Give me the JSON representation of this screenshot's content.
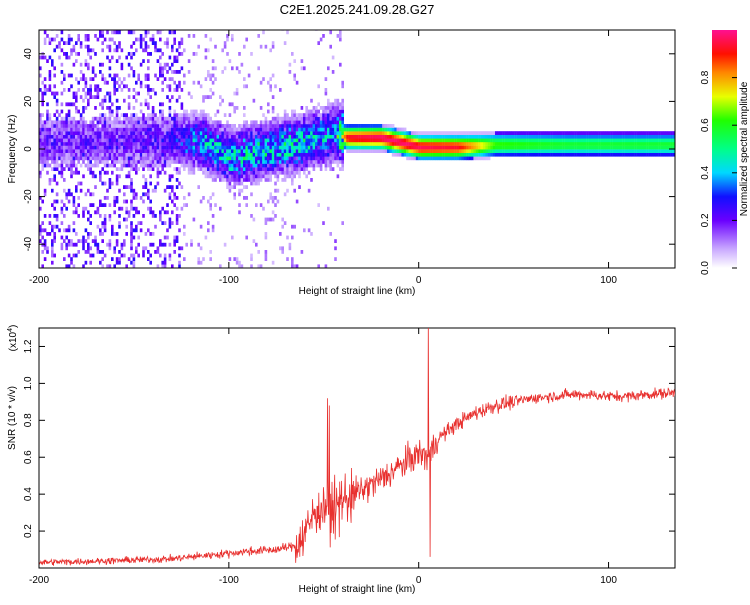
{
  "chart_data": [
    {
      "type": "heatmap",
      "title": "C2E1.2025.241.09.28.G27",
      "xlabel": "Height of straight line (km)",
      "ylabel": "Frequency (Hz)",
      "xlim": [
        -200,
        135
      ],
      "ylim": [
        -50,
        50
      ],
      "xticks": [
        "-200",
        "-100",
        "0",
        "100"
      ],
      "yticks": [
        "40",
        "20",
        "0",
        "-20",
        "-40"
      ],
      "colorbar": {
        "label": "Normalized spectral amplitude",
        "range": [
          0,
          1
        ],
        "ticks": [
          "0.0",
          "0.2",
          "0.4",
          "0.6",
          "0.8"
        ]
      },
      "ridge": [
        {
          "x": -160,
          "f": 2,
          "amp": 0.2
        },
        {
          "x": -130,
          "f": 3,
          "amp": 0.25
        },
        {
          "x": -115,
          "f": 2,
          "amp": 0.4
        },
        {
          "x": -100,
          "f": -4,
          "amp": 0.45
        },
        {
          "x": -80,
          "f": -1,
          "amp": 0.45
        },
        {
          "x": -60,
          "f": 2,
          "amp": 0.45
        },
        {
          "x": -45,
          "f": 6,
          "amp": 0.4
        },
        {
          "x": -38,
          "f": 4,
          "amp": 0.85
        },
        {
          "x": -20,
          "f": 4,
          "amp": 0.9
        },
        {
          "x": -10,
          "f": 2,
          "amp": 0.9
        },
        {
          "x": 0,
          "f": 0,
          "amp": 0.88
        },
        {
          "x": 20,
          "f": 0,
          "amp": 0.85
        },
        {
          "x": 40,
          "f": 1,
          "amp": 0.55
        },
        {
          "x": 80,
          "f": 1,
          "amp": 0.5
        },
        {
          "x": 135,
          "f": 1,
          "amp": 0.5
        }
      ]
    },
    {
      "type": "line",
      "xlabel": "Height of straight line (km)",
      "ylabel": "SNR (10 * v/v)",
      "y_scale_label": "(x10^4)",
      "y_scale_base": "(x10",
      "y_scale_exp": "4",
      "xlim": [
        -200,
        135
      ],
      "ylim": [
        0,
        1.3
      ],
      "xticks": [
        "-200",
        "-100",
        "0",
        "100"
      ],
      "yticks": [
        "0.2",
        "0.4",
        "0.6",
        "0.8",
        "1.0",
        "1.2"
      ],
      "color": "#e8302e",
      "series": [
        {
          "name": "SNR",
          "x": [
            -200,
            -160,
            -130,
            -110,
            -90,
            -75,
            -65,
            -60,
            -55,
            -50,
            -45,
            -40,
            -30,
            -20,
            -10,
            0,
            5,
            10,
            20,
            30,
            40,
            50,
            60,
            70,
            80,
            90,
            100,
            110,
            120,
            135
          ],
          "y": [
            0.03,
            0.04,
            0.05,
            0.07,
            0.09,
            0.1,
            0.12,
            0.2,
            0.3,
            0.35,
            0.32,
            0.38,
            0.42,
            0.48,
            0.55,
            0.62,
            0.6,
            0.7,
            0.78,
            0.84,
            0.88,
            0.9,
            0.92,
            0.93,
            0.94,
            0.94,
            0.93,
            0.93,
            0.94,
            0.95
          ]
        }
      ],
      "spikes": [
        {
          "x": -48,
          "y": 0.92
        },
        {
          "x": -47,
          "y": 0.88
        },
        {
          "x": 5,
          "y": 1.35
        },
        {
          "x": 6,
          "y": 0.06
        }
      ]
    }
  ]
}
